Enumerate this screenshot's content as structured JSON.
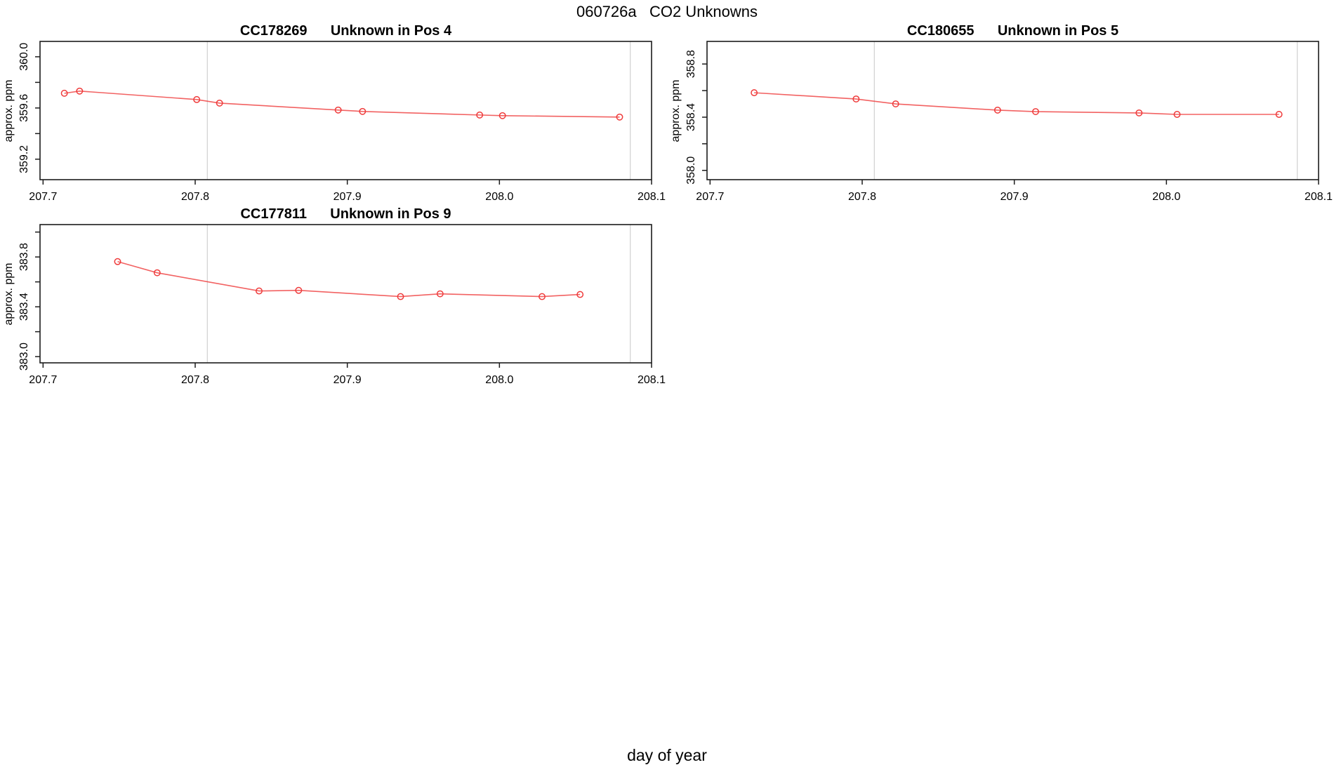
{
  "page_title": "060726a   CO2 Unknowns",
  "xlabel": "day of year",
  "colors": {
    "series": "#ef3b3b",
    "gridline": "#d4d4d4",
    "axis": "#1c1c1c"
  },
  "chart_data": [
    {
      "type": "line",
      "title": "CC178269      Unknown in Pos 4",
      "sample_id": "CC178269",
      "position_label": "Unknown in Pos 4",
      "ylabel": "approx. ppm",
      "xlim": [
        207.698,
        208.1
      ],
      "ylim": [
        359.04,
        360.12
      ],
      "xticks": [
        207.7,
        207.8,
        207.9,
        208.0,
        208.1
      ],
      "xtick_labels": [
        "207.7",
        "207.8",
        "207.9",
        "208.0",
        "208.1"
      ],
      "yticks": [
        {
          "v": 360.0,
          "label": "360.0"
        },
        {
          "v": 359.8,
          "label": ""
        },
        {
          "v": 359.6,
          "label": "359.6"
        },
        {
          "v": 359.4,
          "label": ""
        },
        {
          "v": 359.2,
          "label": "359.2"
        }
      ],
      "vlines": [
        207.808,
        208.086
      ],
      "x": [
        207.714,
        207.724,
        207.801,
        207.816,
        207.894,
        207.91,
        207.987,
        208.002,
        208.079
      ],
      "y": [
        359.715,
        359.732,
        359.666,
        359.638,
        359.584,
        359.573,
        359.545,
        359.54,
        359.529
      ]
    },
    {
      "type": "line",
      "title": "CC180655      Unknown in Pos 5",
      "sample_id": "CC180655",
      "position_label": "Unknown in Pos 5",
      "ylabel": "approx. ppm",
      "xlim": [
        207.698,
        208.1
      ],
      "ylim": [
        357.93,
        358.97
      ],
      "xticks": [
        207.7,
        207.8,
        207.9,
        208.0,
        208.1
      ],
      "xtick_labels": [
        "207.7",
        "207.8",
        "207.9",
        "208.0",
        "208.1"
      ],
      "yticks": [
        {
          "v": 358.8,
          "label": "358.8"
        },
        {
          "v": 358.6,
          "label": ""
        },
        {
          "v": 358.4,
          "label": "358.4"
        },
        {
          "v": 358.2,
          "label": ""
        },
        {
          "v": 358.0,
          "label": "358.0"
        }
      ],
      "vlines": [
        207.808,
        208.086
      ],
      "x": [
        207.729,
        207.796,
        207.822,
        207.889,
        207.914,
        207.982,
        208.007,
        208.074
      ],
      "y": [
        358.584,
        358.537,
        358.5,
        358.453,
        358.442,
        358.432,
        358.421,
        358.421
      ]
    },
    {
      "type": "line",
      "title": "CC177811      Unknown in Pos 9",
      "sample_id": "CC177811",
      "position_label": "Unknown in Pos 9",
      "ylabel": "approx. ppm",
      "xlim": [
        207.698,
        208.1
      ],
      "ylim": [
        382.95,
        384.06
      ],
      "xticks": [
        207.7,
        207.8,
        207.9,
        208.0,
        208.1
      ],
      "xtick_labels": [
        "207.7",
        "207.8",
        "207.9",
        "208.0",
        "208.1"
      ],
      "yticks": [
        {
          "v": 384.0,
          "label": ""
        },
        {
          "v": 383.8,
          "label": "383.8"
        },
        {
          "v": 383.6,
          "label": ""
        },
        {
          "v": 383.4,
          "label": "383.4"
        },
        {
          "v": 383.2,
          "label": ""
        },
        {
          "v": 383.0,
          "label": "383.0"
        }
      ],
      "vlines": [
        207.808,
        208.086
      ],
      "x": [
        207.749,
        207.775,
        207.842,
        207.868,
        207.935,
        207.961,
        208.028,
        208.053
      ],
      "y": [
        383.763,
        383.673,
        383.527,
        383.532,
        383.482,
        383.504,
        383.482,
        383.499
      ]
    }
  ]
}
